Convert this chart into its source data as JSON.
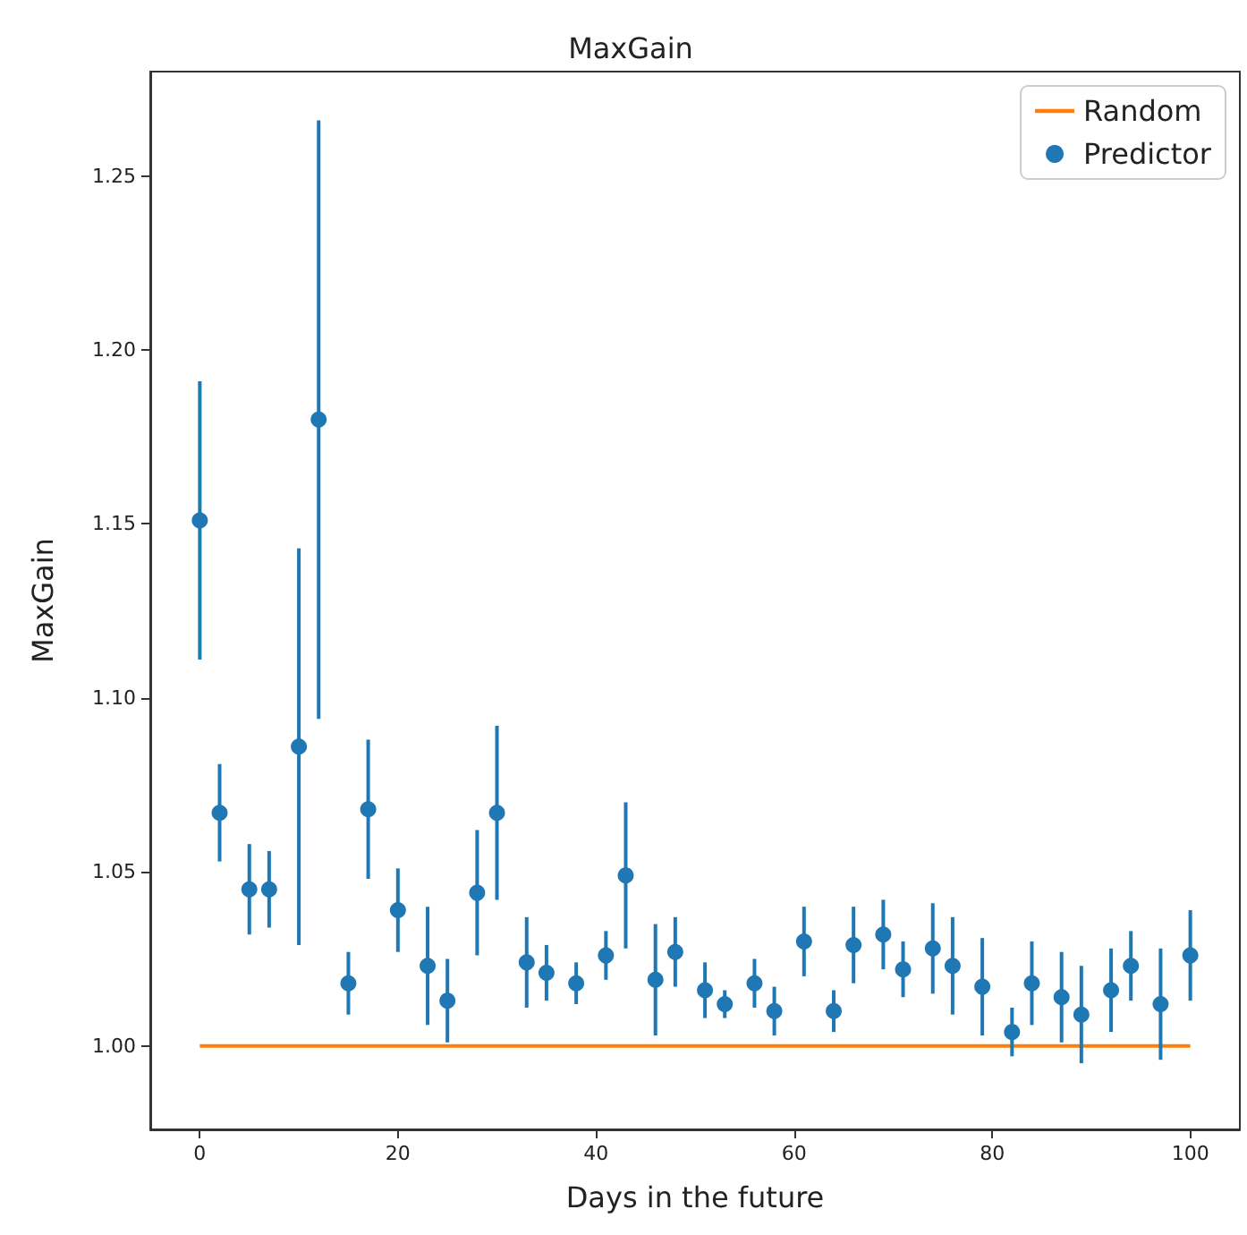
{
  "chart_data": {
    "type": "scatter",
    "title": "MaxGain",
    "xlabel": "Days in the future",
    "ylabel": "MaxGain",
    "xlim": [
      -5,
      105
    ],
    "xticks": [
      0,
      20,
      40,
      60,
      80,
      100
    ],
    "ylim": [
      0.976,
      1.28
    ],
    "yticks": [
      {
        "value": 1,
        "label": "1.00"
      },
      {
        "value": 1.05,
        "label": "1.05"
      },
      {
        "value": 1.1,
        "label": "1.10"
      },
      {
        "value": 1.15,
        "label": "1.15"
      },
      {
        "value": 1.2,
        "label": "1.20"
      },
      {
        "value": 1.25,
        "label": "1.25"
      }
    ],
    "grid": false,
    "legend": "top right",
    "marker": "circle",
    "series": [
      {
        "name": "Random",
        "type": "line",
        "color": "#ff7f0e",
        "marker": "none",
        "x": [
          0,
          100
        ],
        "values": [
          1,
          1
        ]
      },
      {
        "name": "Predictor",
        "color": "#1f77b4",
        "x": [
          0,
          2,
          5,
          7,
          10,
          12,
          15,
          17,
          20,
          23,
          25,
          28,
          30,
          33,
          35,
          38,
          41,
          43,
          46,
          48,
          51,
          53,
          56,
          58,
          61,
          64,
          66,
          69,
          71,
          74,
          76,
          79,
          82,
          84,
          87,
          89,
          92,
          94,
          97,
          100
        ],
        "values": [
          1.151,
          1.067,
          1.045,
          1.045,
          1.086,
          1.18,
          1.018,
          1.068,
          1.039,
          1.023,
          1.013,
          1.044,
          1.067,
          1.024,
          1.021,
          1.018,
          1.026,
          1.049,
          1.019,
          1.027,
          1.016,
          1.012,
          1.018,
          1.01,
          1.03,
          1.01,
          1.029,
          1.032,
          1.022,
          1.028,
          1.023,
          1.017,
          1.004,
          1.018,
          1.014,
          1.009,
          1.016,
          1.023,
          1.012,
          1.026
        ],
        "errors": [
          0.04,
          0.014,
          0.013,
          0.011,
          0.057,
          0.086,
          0.009,
          0.02,
          0.012,
          0.017,
          0.012,
          0.018,
          0.025,
          0.013,
          0.008,
          0.006,
          0.007,
          0.021,
          0.016,
          0.01,
          0.008,
          0.004,
          0.007,
          0.007,
          0.01,
          0.006,
          0.011,
          0.01,
          0.008,
          0.013,
          0.014,
          0.014,
          0.007,
          0.012,
          0.013,
          0.014,
          0.012,
          0.01,
          0.016,
          0.013
        ]
      }
    ]
  }
}
